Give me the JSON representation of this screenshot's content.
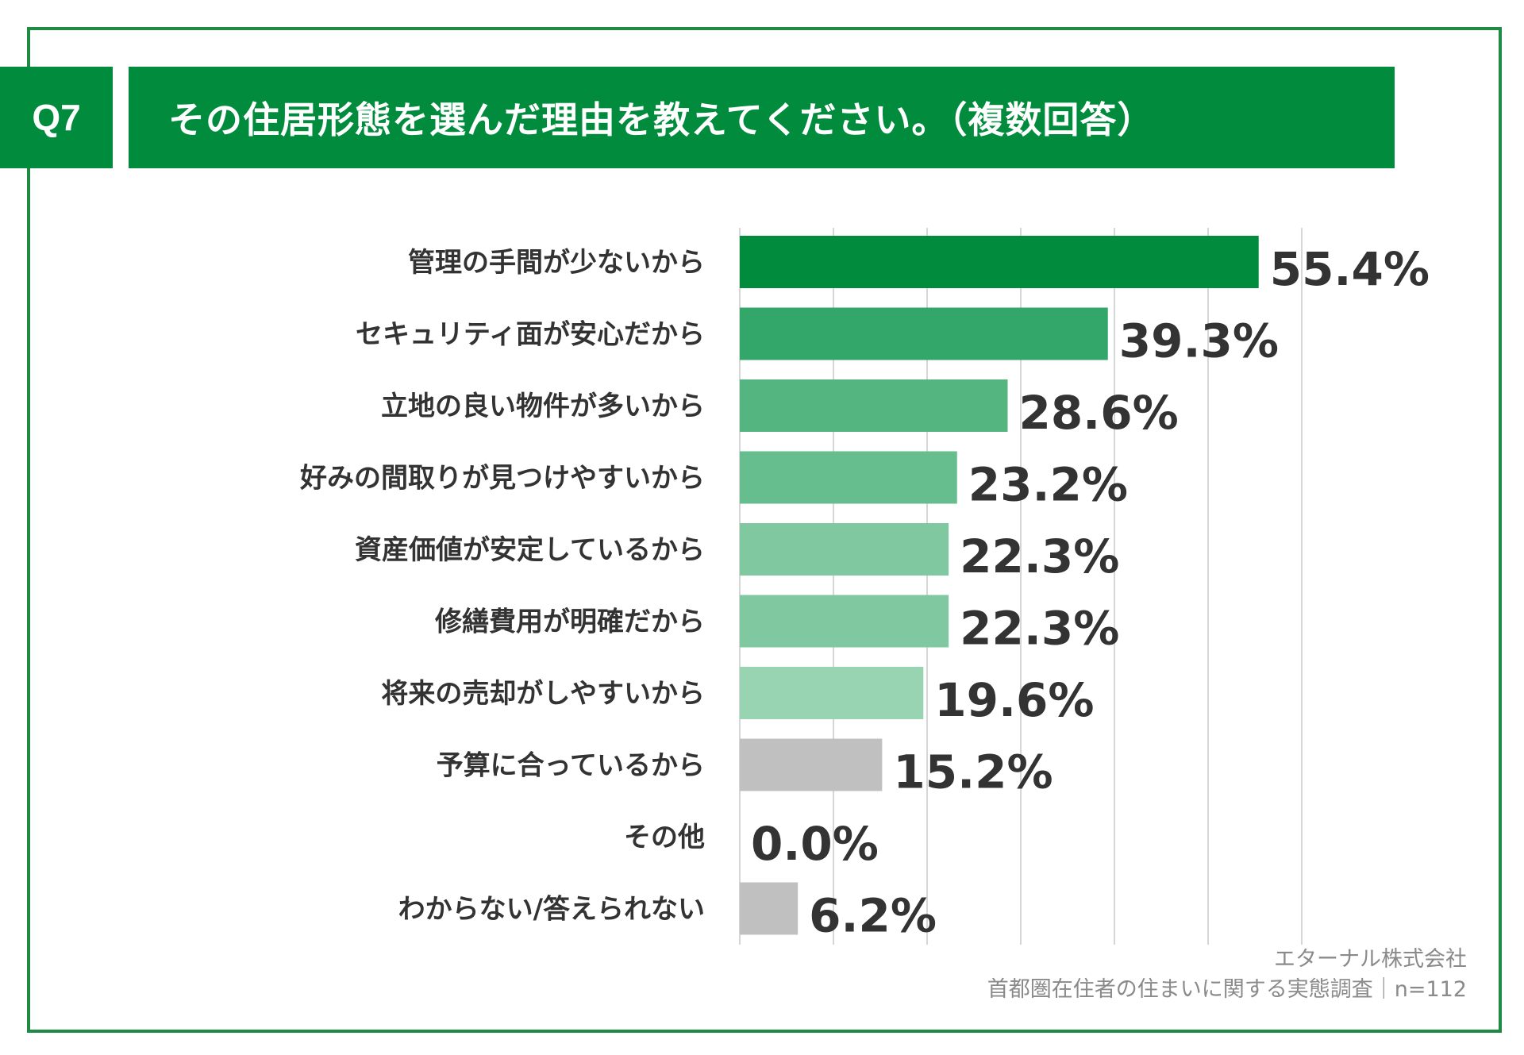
{
  "header": {
    "question_no": "Q7",
    "title": "その住居形態を選んだ理由を教えてください。（複数回答）"
  },
  "footer": {
    "company": "エターナル株式会社",
    "survey": "首都圏在住者の住まいに関する実態調査｜n=112"
  },
  "colors": {
    "frame": "#1e8a44",
    "header_bg": "#008c3c",
    "grid": "#d6d6d6",
    "bars": [
      "#008c3c",
      "#33a66a",
      "#55b580",
      "#66bd8d",
      "#80c9a0",
      "#80c9a0",
      "#99d4b2",
      "#c0c0c0",
      "#c0c0c0",
      "#c0c0c0"
    ]
  },
  "chart_data": {
    "type": "bar",
    "orientation": "horizontal",
    "categories": [
      "管理の手間が少ないから",
      "セキュリティ面が安心だから",
      "立地の良い物件が多いから",
      "好みの間取りが見つけやすいから",
      "資産価値が安定しているから",
      "修繕費用が明確だから",
      "将来の売却がしやすいから",
      "予算に合っているから",
      "その他",
      "わからない/答えられない"
    ],
    "values": [
      55.4,
      39.3,
      28.6,
      23.2,
      22.3,
      22.3,
      19.6,
      15.2,
      0.0,
      6.2
    ],
    "value_labels": [
      "55.4%",
      "39.3%",
      "28.6%",
      "23.2%",
      "22.3%",
      "22.3%",
      "19.6%",
      "15.2%",
      "0.0%",
      "6.2%"
    ],
    "xlim": [
      0,
      60
    ],
    "grid": true,
    "grid_step": 10,
    "legend": "none"
  }
}
